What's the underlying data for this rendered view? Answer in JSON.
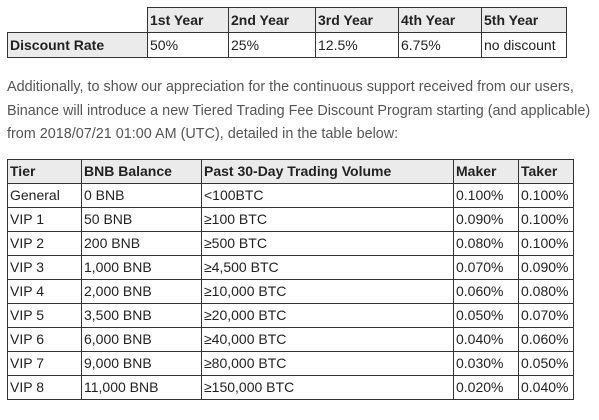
{
  "discount_table": {
    "header": [
      "",
      "1st Year",
      "2nd Year",
      "3rd Year",
      "4th Year",
      "5th Year"
    ],
    "row_label": "Discount Rate",
    "values": [
      "50%",
      "25%",
      "12.5%",
      "6.75%",
      "no discount"
    ]
  },
  "intro_text": "Additionally, to show our appreciation for the continuous support received from our users, Binance will introduce a new Tiered Trading Fee Discount Program starting (and applicable) from 2018/07/21 01:00 AM (UTC), detailed in the table below:",
  "tier_table": {
    "headers": [
      "Tier",
      "BNB Balance",
      "Past 30-Day Trading Volume",
      "Maker",
      "Taker"
    ],
    "rows": [
      [
        "General",
        "0 BNB",
        "<100BTC",
        "0.100%",
        "0.100%"
      ],
      [
        "VIP 1",
        "50 BNB",
        "≥100 BTC",
        "0.090%",
        "0.100%"
      ],
      [
        "VIP 2",
        "200 BNB",
        "≥500 BTC",
        "0.080%",
        "0.100%"
      ],
      [
        "VIP 3",
        "1,000 BNB",
        "≥4,500 BTC",
        "0.070%",
        "0.090%"
      ],
      [
        "VIP 4",
        "2,000 BNB",
        "≥10,000 BTC",
        "0.060%",
        "0.080%"
      ],
      [
        "VIP 5",
        "3,500 BNB",
        "≥20,000 BTC",
        "0.050%",
        "0.070%"
      ],
      [
        "VIP 6",
        "6,000 BNB",
        "≥40,000 BTC",
        "0.040%",
        "0.060%"
      ],
      [
        "VIP 7",
        "9,000 BNB",
        "≥80,000 BTC",
        "0.030%",
        "0.050%"
      ],
      [
        "VIP 8",
        "11,000 BNB",
        "≥150,000 BTC",
        "0.020%",
        "0.040%"
      ]
    ]
  }
}
